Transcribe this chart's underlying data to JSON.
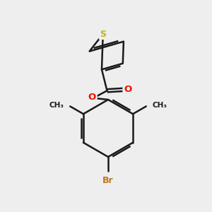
{
  "background_color": "#eeeeee",
  "bond_color": "#1a1a1a",
  "sulfur_color": "#c8b400",
  "oxygen_color": "#ee1100",
  "bromine_color": "#c07820",
  "bond_width": 1.8,
  "figsize": [
    3.0,
    3.0
  ],
  "dpi": 100,
  "xlim": [
    0,
    10
  ],
  "ylim": [
    0,
    10
  ]
}
